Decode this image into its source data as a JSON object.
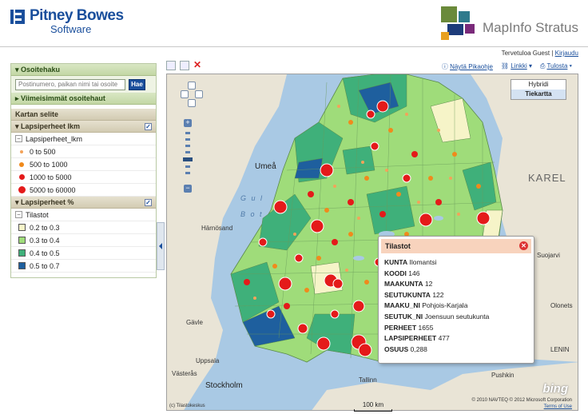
{
  "header": {
    "brand_name": "Pitney Bowes",
    "brand_sub": "Software",
    "product_name": "MapInfo Stratus"
  },
  "topbar": {
    "welcome": "Tervetuloa Guest",
    "separator": "|",
    "logout": "Kirjaudu"
  },
  "panel": {
    "address_search": {
      "title": "Osoitehaku",
      "placeholder": "Postinumero, paikan nimi tai osoite",
      "button": "Hae",
      "recent": "Viimeisimmät osoitehaut"
    },
    "legend_title": "Kartan selite",
    "layer1": {
      "title": "Lapsiperheet lkm",
      "sublayer": "Lapsiperheet_lkm",
      "checked": true,
      "items": [
        {
          "label": "0 to 500",
          "color": "#f3a35a",
          "size": 4
        },
        {
          "label": "500 to 1000",
          "color": "#f08a1c",
          "size": 6
        },
        {
          "label": "1000 to 5000",
          "color": "#e41a1a",
          "size": 7
        },
        {
          "label": "5000 to 60000",
          "color": "#e41a1a",
          "size": 9
        }
      ]
    },
    "layer2": {
      "title": "Lapsiperheet %",
      "sublayer": "Tilastot",
      "checked": true,
      "items": [
        {
          "label": "0.2 to 0.3",
          "color": "#f6f4c8"
        },
        {
          "label": "0.3 to 0.4",
          "color": "#9fdc7a"
        },
        {
          "label": "0.4 to 0.5",
          "color": "#3fb07a"
        },
        {
          "label": "0.5 to 0.7",
          "color": "#1e5f9e"
        }
      ]
    }
  },
  "links": {
    "quick_guide": "Näytä Pikaohje",
    "links": "Linkki",
    "print": "Tulosta"
  },
  "map": {
    "types": [
      "Hybridi",
      "Tiekartta"
    ],
    "selected_type": "Tiekartta",
    "labels": {
      "umea": "Umeå",
      "gulf": "G u l",
      "bothnia": "B o t",
      "karelia": "KAREL",
      "harnosand": "Härnösand",
      "gavle": "Gävle",
      "uppsala": "Uppsala",
      "vasteras": "Västerås",
      "stockholm": "Stockholm",
      "tallinn": "Tallinn",
      "pushkin": "Pushkin",
      "suojarvi": "Suojarvi",
      "lenin": "LENIN",
      "ologonets": "Olonets"
    },
    "scale": "100 km",
    "attribution": "(c) Tilastokeskus",
    "copyright": "© 2010 NAVTEQ © 2012 Microsoft Corporation",
    "terms": "Terms of Use",
    "bing": "bing"
  },
  "popup": {
    "title": "Tilastot",
    "rows": [
      {
        "key": "KUNTA",
        "value": "Ilomantsi"
      },
      {
        "key": "KOODI",
        "value": "146"
      },
      {
        "key": "MAAKUNTA",
        "value": "12"
      },
      {
        "key": "SEUTUKUNTA",
        "value": "122"
      },
      {
        "key": "MAAKU_NI",
        "value": "Pohjois-Karjala"
      },
      {
        "key": "SEUTUK_NI",
        "value": "Joensuun seutukunta"
      },
      {
        "key": "PERHEET",
        "value": "1655"
      },
      {
        "key": "LAPSIPERHEET",
        "value": "477"
      },
      {
        "key": "OSUUS",
        "value": "0,288"
      }
    ]
  }
}
